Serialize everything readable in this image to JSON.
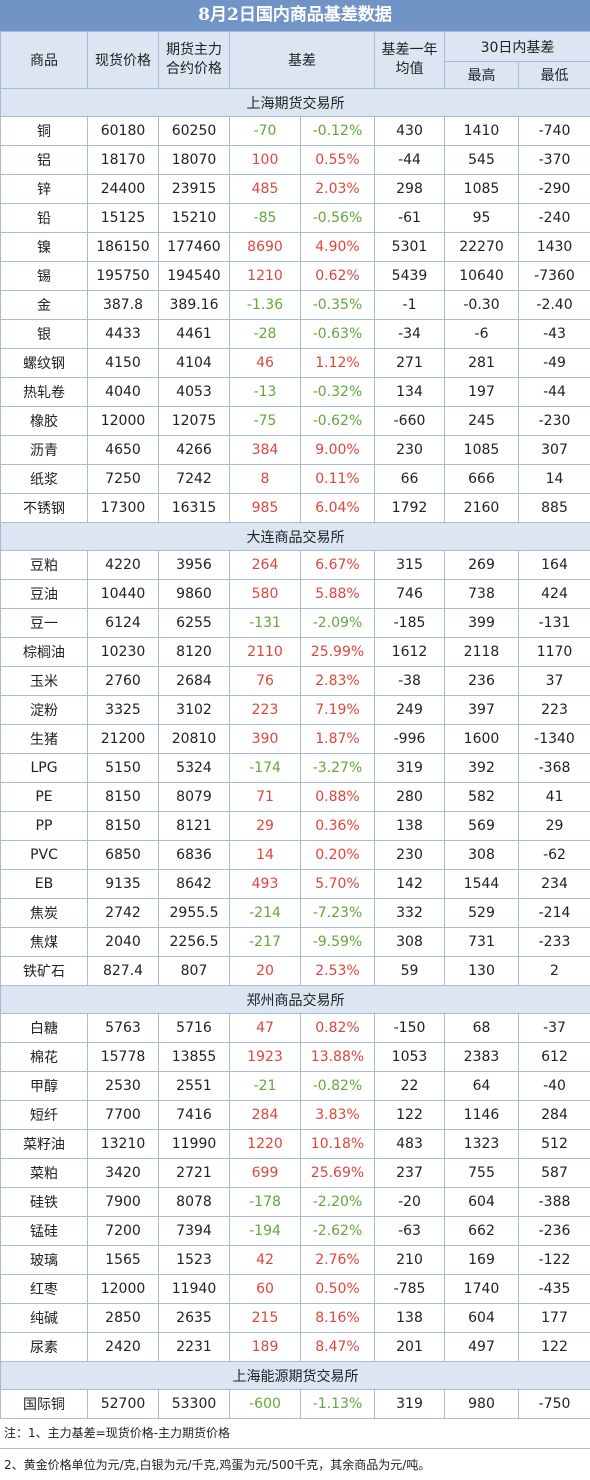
{
  "title": "8月2日国内商品基差数据",
  "headers": {
    "commodity": "商品",
    "spot": "现货价格",
    "futures": "期货主力合约价格",
    "basis": "基差",
    "basis_1y_avg": "基差一年均值",
    "basis_30d": "30日内基差",
    "high": "最高",
    "low": "最低"
  },
  "sections": [
    {
      "name": "上海期货交易所",
      "rows": [
        [
          "铜",
          "60180",
          "60250",
          "-70",
          "-0.12%",
          "430",
          "1410",
          "-740",
          "down"
        ],
        [
          "铝",
          "18170",
          "18070",
          "100",
          "0.55%",
          "-44",
          "545",
          "-370",
          "up"
        ],
        [
          "锌",
          "24400",
          "23915",
          "485",
          "2.03%",
          "298",
          "1085",
          "-290",
          "up"
        ],
        [
          "铅",
          "15125",
          "15210",
          "-85",
          "-0.56%",
          "-61",
          "95",
          "-240",
          "down"
        ],
        [
          "镍",
          "186150",
          "177460",
          "8690",
          "4.90%",
          "5301",
          "22270",
          "1430",
          "up"
        ],
        [
          "锡",
          "195750",
          "194540",
          "1210",
          "0.62%",
          "5439",
          "10640",
          "-7360",
          "up"
        ],
        [
          "金",
          "387.8",
          "389.16",
          "-1.36",
          "-0.35%",
          "-1",
          "-0.30",
          "-2.40",
          "down"
        ],
        [
          "银",
          "4433",
          "4461",
          "-28",
          "-0.63%",
          "-34",
          "-6",
          "-43",
          "down"
        ],
        [
          "螺纹钢",
          "4150",
          "4104",
          "46",
          "1.12%",
          "271",
          "281",
          "-49",
          "up"
        ],
        [
          "热轧卷",
          "4040",
          "4053",
          "-13",
          "-0.32%",
          "134",
          "197",
          "-44",
          "down"
        ],
        [
          "橡胶",
          "12000",
          "12075",
          "-75",
          "-0.62%",
          "-660",
          "245",
          "-230",
          "down"
        ],
        [
          "沥青",
          "4650",
          "4266",
          "384",
          "9.00%",
          "230",
          "1085",
          "307",
          "up"
        ],
        [
          "纸浆",
          "7250",
          "7242",
          "8",
          "0.11%",
          "66",
          "666",
          "14",
          "up"
        ],
        [
          "不锈钢",
          "17300",
          "16315",
          "985",
          "6.04%",
          "1792",
          "2160",
          "885",
          "up"
        ]
      ]
    },
    {
      "name": "大连商品交易所",
      "rows": [
        [
          "豆粕",
          "4220",
          "3956",
          "264",
          "6.67%",
          "315",
          "269",
          "164",
          "up"
        ],
        [
          "豆油",
          "10440",
          "9860",
          "580",
          "5.88%",
          "746",
          "738",
          "424",
          "up"
        ],
        [
          "豆一",
          "6124",
          "6255",
          "-131",
          "-2.09%",
          "-185",
          "399",
          "-131",
          "down"
        ],
        [
          "棕榈油",
          "10230",
          "8120",
          "2110",
          "25.99%",
          "1612",
          "2118",
          "1170",
          "up"
        ],
        [
          "玉米",
          "2760",
          "2684",
          "76",
          "2.83%",
          "-38",
          "236",
          "37",
          "up"
        ],
        [
          "淀粉",
          "3325",
          "3102",
          "223",
          "7.19%",
          "249",
          "397",
          "223",
          "up"
        ],
        [
          "生猪",
          "21200",
          "20810",
          "390",
          "1.87%",
          "-996",
          "1600",
          "-1340",
          "up"
        ],
        [
          "LPG",
          "5150",
          "5324",
          "-174",
          "-3.27%",
          "319",
          "392",
          "-368",
          "down"
        ],
        [
          "PE",
          "8150",
          "8079",
          "71",
          "0.88%",
          "280",
          "582",
          "41",
          "up"
        ],
        [
          "PP",
          "8150",
          "8121",
          "29",
          "0.36%",
          "138",
          "569",
          "29",
          "up"
        ],
        [
          "PVC",
          "6850",
          "6836",
          "14",
          "0.20%",
          "230",
          "308",
          "-62",
          "up"
        ],
        [
          "EB",
          "9135",
          "8642",
          "493",
          "5.70%",
          "142",
          "1544",
          "234",
          "up"
        ],
        [
          "焦炭",
          "2742",
          "2955.5",
          "-214",
          "-7.23%",
          "332",
          "529",
          "-214",
          "down"
        ],
        [
          "焦煤",
          "2040",
          "2256.5",
          "-217",
          "-9.59%",
          "308",
          "731",
          "-233",
          "down"
        ],
        [
          "铁矿石",
          "827.4",
          "807",
          "20",
          "2.53%",
          "59",
          "130",
          "2",
          "up"
        ]
      ]
    },
    {
      "name": "郑州商品交易所",
      "rows": [
        [
          "白糖",
          "5763",
          "5716",
          "47",
          "0.82%",
          "-150",
          "68",
          "-37",
          "up"
        ],
        [
          "棉花",
          "15778",
          "13855",
          "1923",
          "13.88%",
          "1053",
          "2383",
          "612",
          "up"
        ],
        [
          "甲醇",
          "2530",
          "2551",
          "-21",
          "-0.82%",
          "22",
          "64",
          "-40",
          "down"
        ],
        [
          "短纤",
          "7700",
          "7416",
          "284",
          "3.83%",
          "122",
          "1146",
          "284",
          "up"
        ],
        [
          "菜籽油",
          "13210",
          "11990",
          "1220",
          "10.18%",
          "483",
          "1323",
          "512",
          "up"
        ],
        [
          "菜粕",
          "3420",
          "2721",
          "699",
          "25.69%",
          "237",
          "755",
          "587",
          "up"
        ],
        [
          "硅铁",
          "7900",
          "8078",
          "-178",
          "-2.20%",
          "-20",
          "604",
          "-388",
          "down"
        ],
        [
          "锰硅",
          "7200",
          "7394",
          "-194",
          "-2.62%",
          "-63",
          "662",
          "-236",
          "down"
        ],
        [
          "玻璃",
          "1565",
          "1523",
          "42",
          "2.76%",
          "210",
          "169",
          "-122",
          "up"
        ],
        [
          "红枣",
          "12000",
          "11940",
          "60",
          "0.50%",
          "-785",
          "1740",
          "-435",
          "up"
        ],
        [
          "纯碱",
          "2850",
          "2635",
          "215",
          "8.16%",
          "138",
          "604",
          "177",
          "up"
        ],
        [
          "尿素",
          "2420",
          "2231",
          "189",
          "8.47%",
          "201",
          "497",
          "122",
          "up"
        ]
      ]
    },
    {
      "name": "上海能源期货交易所",
      "rows": [
        [
          "国际铜",
          "52700",
          "53300",
          "-600",
          "-1.13%",
          "319",
          "980",
          "-750",
          "down"
        ]
      ]
    }
  ],
  "notes": {
    "note1": "注：1、主力基差=现货价格-主力期货价格",
    "note2": "2、黄金价格单位为元/克,白银为元/千克,鸡蛋为元/500千克，其余商品为元/吨。"
  },
  "colors": {
    "title_bg": "#7194c7",
    "header_bg": "#dce5f2",
    "positive": "#e0453c",
    "negative": "#62a838",
    "border": "#a7bbd8"
  }
}
